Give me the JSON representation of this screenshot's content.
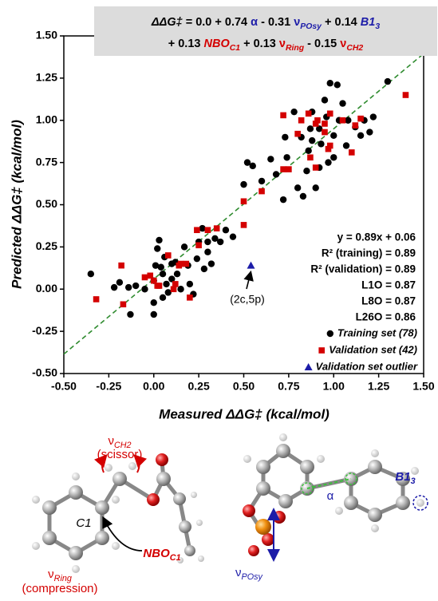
{
  "chart_data": {
    "type": "scatter",
    "equation": [
      [
        {
          "text": "ΔΔG‡",
          "italic": true
        },
        {
          "text": " = 0.0 + 0.74 "
        },
        {
          "text": "α",
          "color": "#1c1ca8"
        },
        {
          "text": " - 0.31 "
        },
        {
          "text": "ν",
          "color": "#1c1ca8"
        },
        {
          "text": "POsy",
          "color": "#1c1ca8",
          "italic": true,
          "sub": true
        },
        {
          "text": " + 0.14 "
        },
        {
          "text": "B1",
          "color": "#1c1ca8",
          "italic": true
        },
        {
          "text": "3",
          "color": "#1c1ca8",
          "italic": true,
          "sub": true
        }
      ],
      [
        {
          "text": "+ 0.13 "
        },
        {
          "text": "NBO",
          "color": "#d40000",
          "italic": true
        },
        {
          "text": "C1",
          "color": "#d40000",
          "italic": true,
          "sub": true
        },
        {
          "text": " + 0.13 "
        },
        {
          "text": "ν",
          "color": "#d40000"
        },
        {
          "text": "Ring",
          "color": "#d40000",
          "italic": true,
          "sub": true
        },
        {
          "text": " - 0.15 "
        },
        {
          "text": "ν",
          "color": "#d40000"
        },
        {
          "text": "CH2",
          "color": "#d40000",
          "italic": true,
          "sub": true
        }
      ]
    ],
    "x_label": "Measured ΔΔG‡ (kcal/mol)",
    "y_label": "Predicted ΔΔG‡ (kcal/mol)",
    "xlim": [
      -0.5,
      1.5
    ],
    "ylim": [
      -0.5,
      1.5
    ],
    "xticks": [
      {
        "value": -0.5,
        "label": "-0.50"
      },
      {
        "value": -0.25,
        "label": "-0.25"
      },
      {
        "value": 0,
        "label": "0.00"
      },
      {
        "value": 0.25,
        "label": "0.25"
      },
      {
        "value": 0.5,
        "label": "0.50"
      },
      {
        "value": 0.75,
        "label": "0.75"
      },
      {
        "value": 1,
        "label": "1.00"
      },
      {
        "value": 1.25,
        "label": "1.25"
      },
      {
        "value": 1.5,
        "label": "1.50"
      }
    ],
    "yticks": [
      {
        "value": -0.5,
        "label": "-0.50"
      },
      {
        "value": -0.25,
        "label": "-0.25"
      },
      {
        "value": 0,
        "label": "0.00"
      },
      {
        "value": 0.25,
        "label": "0.25"
      },
      {
        "value": 0.5,
        "label": "0.50"
      },
      {
        "value": 0.75,
        "label": "0.75"
      },
      {
        "value": 1,
        "label": "1.00"
      },
      {
        "value": 1.25,
        "label": "1.25"
      },
      {
        "value": 1.5,
        "label": "1.50"
      }
    ],
    "fit_line": {
      "slope": 0.89,
      "intercept": 0.06,
      "color": "#2e8b2e"
    },
    "stats": [
      "y = 0.89x + 0.06",
      "R² (training) = 0.89",
      "R² (validation) = 0.89",
      "L1O = 0.87",
      "L8O = 0.87",
      "L26O = 0.86"
    ],
    "annotation": "(2c,5p)",
    "series": [
      {
        "name": "Training set (78)",
        "color": "#000000",
        "marker": "circle",
        "x": [
          -0.35,
          -0.22,
          -0.19,
          -0.13,
          -0.14,
          -0.1,
          -0.05,
          0.0,
          0.0,
          0.0,
          0.01,
          0.02,
          0.03,
          0.04,
          0.05,
          0.06,
          0.07,
          0.08,
          0.1,
          0.12,
          0.13,
          0.15,
          0.17,
          0.19,
          0.22,
          0.24,
          0.25,
          0.27,
          0.28,
          0.3,
          0.32,
          0.34,
          0.37,
          0.4,
          0.44,
          0.5,
          0.52,
          0.55,
          0.6,
          0.65,
          0.68,
          0.72,
          0.73,
          0.74,
          0.78,
          0.8,
          0.82,
          0.83,
          0.85,
          0.86,
          0.87,
          0.88,
          0.9,
          0.92,
          0.93,
          0.95,
          0.96,
          0.98,
          1.0,
          1.02,
          1.03,
          1.05,
          1.07,
          1.08,
          1.12,
          1.15,
          1.17,
          1.2,
          1.22,
          1.3,
          0.2,
          0.1,
          0.05,
          0.3,
          0.92,
          0.97,
          1.0,
          0.88
        ],
        "y": [
          0.09,
          0.01,
          0.04,
          -0.15,
          0.01,
          0.02,
          0.0,
          -0.15,
          -0.08,
          0.05,
          0.14,
          0.24,
          0.29,
          0.13,
          0.09,
          0.19,
          0.03,
          -0.02,
          0.15,
          0.16,
          0.09,
          0.0,
          0.25,
          0.14,
          -0.03,
          0.18,
          0.28,
          0.36,
          0.12,
          0.22,
          0.15,
          0.3,
          0.28,
          0.35,
          0.31,
          0.62,
          0.75,
          0.73,
          0.64,
          0.77,
          0.68,
          0.53,
          0.9,
          0.78,
          1.05,
          0.6,
          0.9,
          0.55,
          0.7,
          0.82,
          0.95,
          1.05,
          0.6,
          0.72,
          0.86,
          1.12,
          1.02,
          1.22,
          0.91,
          1.21,
          1.0,
          1.1,
          0.85,
          1.0,
          0.96,
          0.91,
          1.0,
          0.93,
          1.02,
          1.23,
          0.03,
          0.06,
          -0.05,
          0.28,
          0.95,
          0.75,
          0.78,
          0.88
        ]
      },
      {
        "name": "Validation set (42)",
        "color": "#d40000",
        "marker": "square",
        "x": [
          -0.32,
          -0.18,
          -0.17,
          -0.05,
          -0.02,
          0.02,
          0.03,
          0.08,
          0.11,
          0.14,
          0.15,
          0.18,
          0.2,
          0.24,
          0.3,
          0.35,
          0.5,
          0.5,
          0.6,
          0.72,
          0.75,
          0.8,
          0.82,
          0.86,
          0.87,
          0.9,
          0.91,
          0.95,
          0.95,
          0.98,
          0.98,
          1.05,
          1.1,
          1.12,
          1.15,
          1.4,
          0.97,
          0.9,
          0.0,
          0.12,
          0.25,
          0.72
        ],
        "y": [
          -0.06,
          0.14,
          -0.09,
          0.07,
          0.08,
          0.02,
          0.02,
          0.2,
          0.0,
          0.14,
          0.15,
          0.15,
          -0.05,
          0.35,
          0.35,
          0.36,
          0.52,
          0.38,
          0.58,
          0.71,
          0.71,
          0.92,
          1.0,
          1.04,
          0.78,
          0.98,
          1.0,
          0.93,
          0.98,
          1.04,
          0.85,
          1.0,
          0.81,
          0.97,
          1.01,
          1.15,
          0.83,
          0.72,
          0.05,
          0.03,
          0.26,
          1.03
        ]
      },
      {
        "name": "Validation set outlier",
        "color": "#1c1ca8",
        "marker": "triangle",
        "x": [
          0.54
        ],
        "y": [
          0.14
        ]
      }
    ],
    "figure_labels": [
      [
        {
          "text": "ν",
          "color": "#d40000"
        },
        {
          "text": "CH2",
          "color": "#d40000",
          "italic": true,
          "sub": true
        }
      ],
      [
        {
          "text": "(scissor)",
          "color": "#d40000"
        }
      ],
      [
        {
          "text": "C1",
          "italic": true
        }
      ],
      [
        {
          "text": "NBO",
          "color": "#d40000",
          "italic": true,
          "bold": true
        },
        {
          "text": "C1",
          "color": "#d40000",
          "italic": true,
          "bold": true,
          "sub": true
        }
      ],
      [
        {
          "text": "ν",
          "color": "#d40000"
        },
        {
          "text": "Ring",
          "color": "#d40000",
          "italic": true,
          "sub": true
        }
      ],
      [
        {
          "text": "(compression)",
          "color": "#d40000"
        }
      ],
      [
        {
          "text": "α",
          "color": "#1c1ca8"
        }
      ],
      [
        {
          "text": "B1",
          "color": "#1c1ca8",
          "italic": true,
          "bold": true
        },
        {
          "text": "3",
          "color": "#1c1ca8",
          "italic": true,
          "bold": true,
          "sub": true
        }
      ],
      [
        {
          "text": "ν",
          "color": "#1c1ca8"
        },
        {
          "text": "POsy",
          "color": "#1c1ca8",
          "italic": true,
          "sub": true
        }
      ]
    ]
  }
}
